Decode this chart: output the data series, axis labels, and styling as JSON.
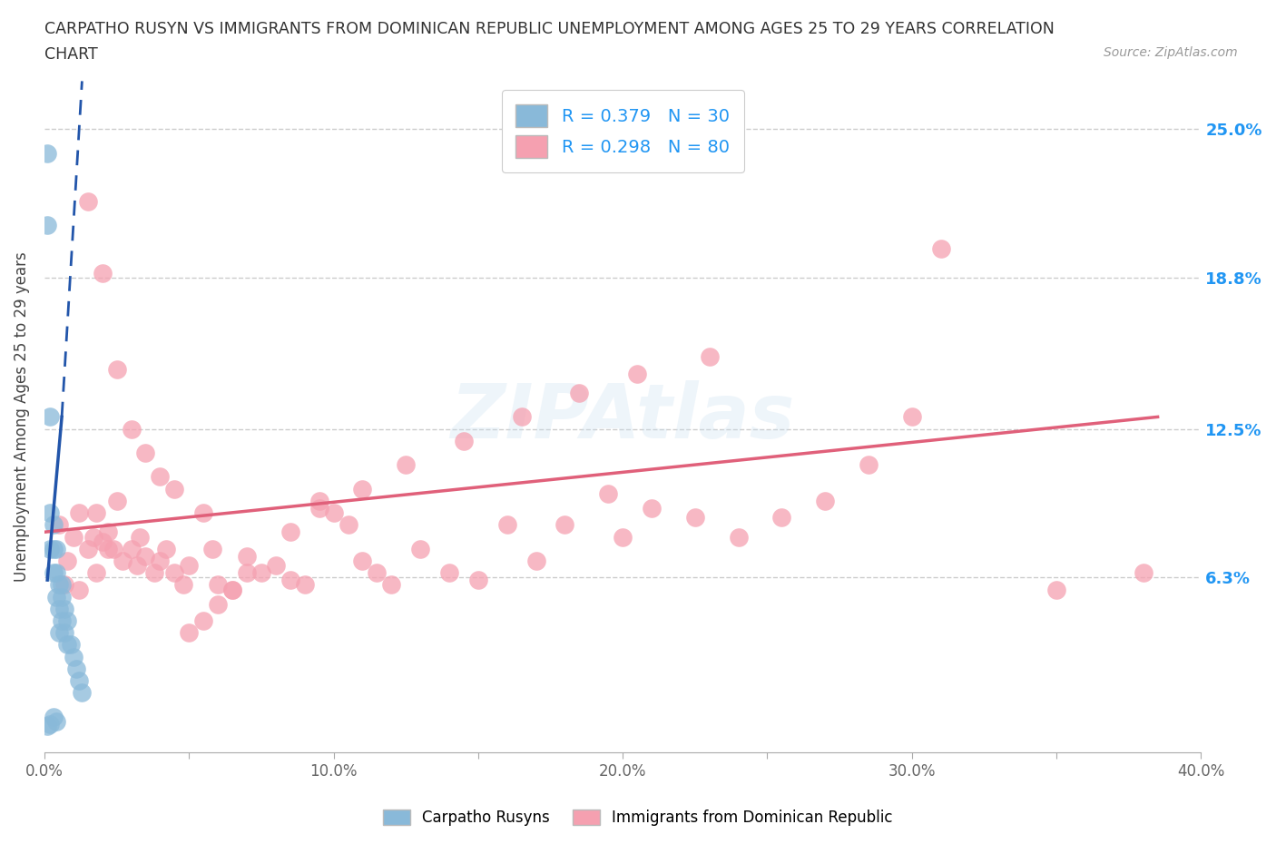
{
  "title_line1": "CARPATHO RUSYN VS IMMIGRANTS FROM DOMINICAN REPUBLIC UNEMPLOYMENT AMONG AGES 25 TO 29 YEARS CORRELATION",
  "title_line2": "CHART",
  "source_text": "Source: ZipAtlas.com",
  "ylabel": "Unemployment Among Ages 25 to 29 years",
  "xlim": [
    0.0,
    0.4
  ],
  "ylim": [
    -0.01,
    0.27
  ],
  "xticks": [
    0.0,
    0.05,
    0.1,
    0.15,
    0.2,
    0.25,
    0.3,
    0.35,
    0.4
  ],
  "xtick_labels": [
    "0.0%",
    "",
    "10.0%",
    "",
    "20.0%",
    "",
    "30.0%",
    "",
    "40.0%"
  ],
  "ytick_positions": [
    0.0,
    0.063,
    0.125,
    0.188,
    0.25
  ],
  "ytick_labels_right": [
    "",
    "6.3%",
    "12.5%",
    "18.8%",
    "25.0%"
  ],
  "blue_color": "#89b9d9",
  "pink_color": "#f5a0b0",
  "blue_line_color": "#2255aa",
  "pink_line_color": "#e0607a",
  "blue_R": 0.379,
  "blue_N": 30,
  "pink_R": 0.298,
  "pink_N": 80,
  "watermark": "ZIPAtlas",
  "legend_label_1": "Carpatho Rusyns",
  "legend_label_2": "Immigrants from Dominican Republic",
  "blue_scatter_x": [
    0.001,
    0.001,
    0.002,
    0.002,
    0.002,
    0.003,
    0.003,
    0.003,
    0.004,
    0.004,
    0.004,
    0.005,
    0.005,
    0.005,
    0.006,
    0.006,
    0.007,
    0.007,
    0.008,
    0.008,
    0.009,
    0.01,
    0.011,
    0.012,
    0.013,
    0.003,
    0.004,
    0.002,
    0.001,
    0.006
  ],
  "blue_scatter_y": [
    0.24,
    0.21,
    0.13,
    0.09,
    0.075,
    0.085,
    0.075,
    0.065,
    0.075,
    0.065,
    0.055,
    0.06,
    0.05,
    0.04,
    0.055,
    0.045,
    0.05,
    0.04,
    0.045,
    0.035,
    0.035,
    0.03,
    0.025,
    0.02,
    0.015,
    0.005,
    0.003,
    0.002,
    0.001,
    0.06
  ],
  "pink_scatter_x": [
    0.005,
    0.01,
    0.012,
    0.015,
    0.017,
    0.018,
    0.02,
    0.022,
    0.024,
    0.025,
    0.027,
    0.03,
    0.032,
    0.033,
    0.035,
    0.038,
    0.04,
    0.042,
    0.045,
    0.048,
    0.05,
    0.055,
    0.058,
    0.06,
    0.065,
    0.07,
    0.075,
    0.08,
    0.085,
    0.09,
    0.095,
    0.1,
    0.105,
    0.11,
    0.115,
    0.12,
    0.13,
    0.14,
    0.15,
    0.16,
    0.17,
    0.18,
    0.195,
    0.2,
    0.21,
    0.225,
    0.24,
    0.255,
    0.27,
    0.285,
    0.3,
    0.015,
    0.02,
    0.025,
    0.03,
    0.035,
    0.04,
    0.045,
    0.05,
    0.055,
    0.06,
    0.065,
    0.07,
    0.085,
    0.095,
    0.11,
    0.125,
    0.145,
    0.165,
    0.185,
    0.205,
    0.23,
    0.007,
    0.008,
    0.012,
    0.018,
    0.022,
    0.31,
    0.35,
    0.38
  ],
  "pink_scatter_y": [
    0.085,
    0.08,
    0.09,
    0.075,
    0.08,
    0.09,
    0.078,
    0.082,
    0.075,
    0.095,
    0.07,
    0.075,
    0.068,
    0.08,
    0.072,
    0.065,
    0.07,
    0.075,
    0.065,
    0.06,
    0.068,
    0.09,
    0.075,
    0.06,
    0.058,
    0.072,
    0.065,
    0.068,
    0.062,
    0.06,
    0.095,
    0.09,
    0.085,
    0.07,
    0.065,
    0.06,
    0.075,
    0.065,
    0.062,
    0.085,
    0.07,
    0.085,
    0.098,
    0.08,
    0.092,
    0.088,
    0.08,
    0.088,
    0.095,
    0.11,
    0.13,
    0.22,
    0.19,
    0.15,
    0.125,
    0.115,
    0.105,
    0.1,
    0.04,
    0.045,
    0.052,
    0.058,
    0.065,
    0.082,
    0.092,
    0.1,
    0.11,
    0.12,
    0.13,
    0.14,
    0.148,
    0.155,
    0.06,
    0.07,
    0.058,
    0.065,
    0.075,
    0.2,
    0.058,
    0.065
  ]
}
